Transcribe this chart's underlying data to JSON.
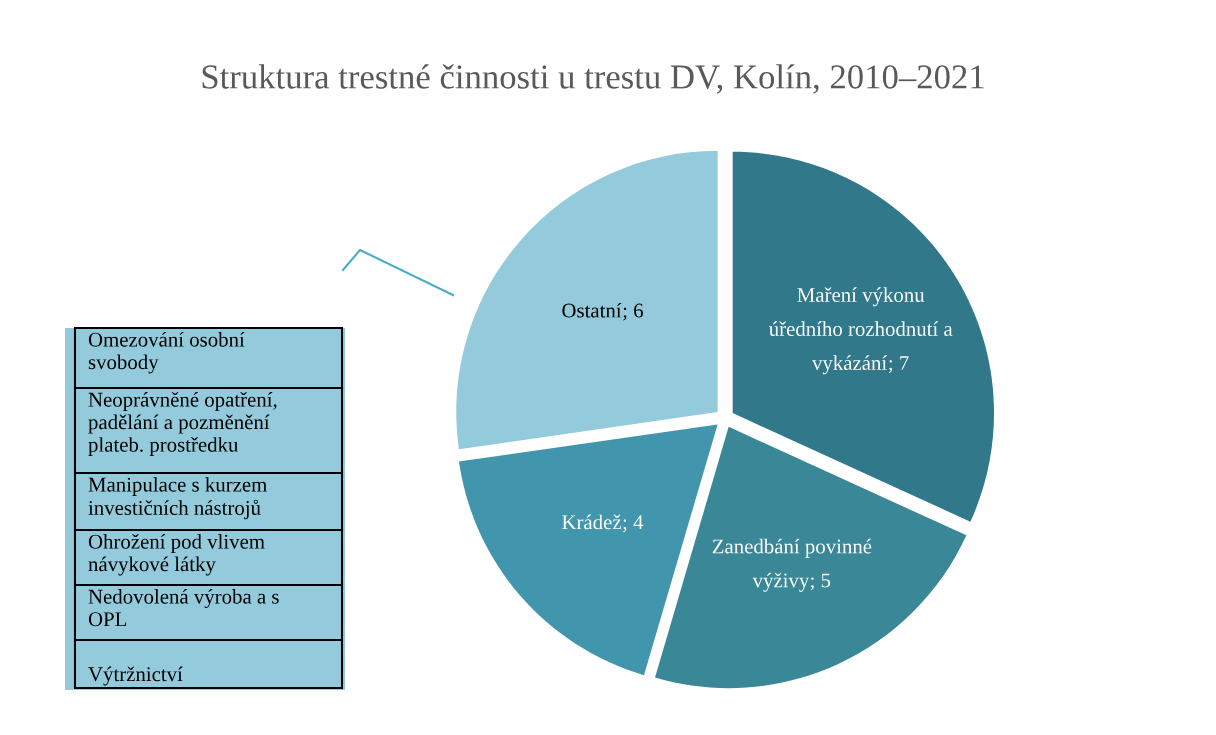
{
  "chart_data": {
    "type": "pie",
    "title": "Struktura trestné činnosti u trestu DV, Kolín, 2010–2021",
    "categories": [
      "Maření výkonu\núředního rozhodnutí a\nvykázání",
      "Zanedbání povinné\nvýživy",
      "Krádež",
      "Ostatní"
    ],
    "values": [
      7,
      5,
      4,
      6
    ],
    "colors": [
      "#31788a",
      "#3a8797",
      "#4196ad",
      "#94cbdc"
    ],
    "value_labels": [
      "; 7",
      "; 5",
      "; 4",
      "; 6"
    ],
    "legend": false,
    "annotations": [
      "Omezování osobní\nsvobody",
      "Neoprávněné opatření,\npadělání a pozměnění\nplateb. prostředku",
      "Manipulace s kurzem\ninvestičních nástrojů",
      "Ohrožení pod vlivem\nnávykové látky",
      "Nedovolená výroba a s\nOPL",
      "\nVýtržnictví"
    ]
  }
}
